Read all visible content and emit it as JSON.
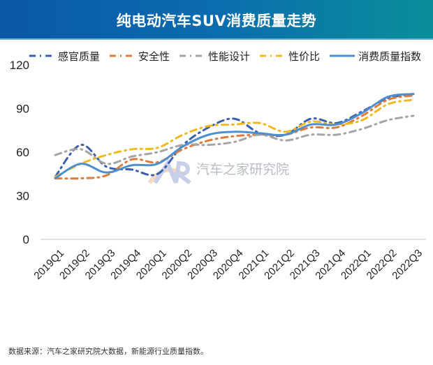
{
  "header": {
    "title": "纯电动汽车SUV消费质量走势"
  },
  "legend": [
    {
      "label": "感官质量",
      "color": "#3a5fb0",
      "style": "dash-dot"
    },
    {
      "label": "安全性",
      "color": "#e07b39",
      "style": "dash-dot"
    },
    {
      "label": "性能设计",
      "color": "#a5a5a5",
      "style": "dash-dot"
    },
    {
      "label": "性价比",
      "color": "#f2b91f",
      "style": "dash-dot"
    },
    {
      "label": "消费质量指数",
      "color": "#4e8fd0",
      "style": "solid"
    }
  ],
  "watermark": {
    "text": "汽车之家研究院",
    "logo": "AR"
  },
  "source": "数据来源：汽车之家研究院大数据，新能源行业质量指数。",
  "chart_data": {
    "type": "line",
    "title": "纯电动汽车SUV消费质量走势",
    "xlabel": "",
    "ylabel": "",
    "ylim": [
      0,
      120
    ],
    "yticks": [
      0,
      30,
      60,
      90,
      120
    ],
    "grid": false,
    "legend_position": "top",
    "categories": [
      "2019Q1",
      "2019Q2",
      "2019Q3",
      "2019Q4",
      "2020Q1",
      "2020Q2",
      "2020Q3",
      "2020Q4",
      "2021Q1",
      "2021Q2",
      "2021Q3",
      "2021Q4",
      "2022Q1",
      "2022Q2",
      "2022Q3"
    ],
    "series": [
      {
        "name": "感官质量",
        "values": [
          43,
          65,
          50,
          48,
          45,
          65,
          77,
          83,
          73,
          72,
          83,
          80,
          88,
          97,
          100
        ]
      },
      {
        "name": "安全性",
        "values": [
          42,
          42,
          44,
          55,
          53,
          62,
          68,
          71,
          72,
          72,
          77,
          77,
          85,
          96,
          99
        ]
      },
      {
        "name": "性能设计",
        "values": [
          58,
          62,
          52,
          57,
          60,
          65,
          65,
          67,
          72,
          68,
          72,
          72,
          76,
          82,
          85
        ]
      },
      {
        "name": "性价比",
        "values": [
          43,
          52,
          58,
          62,
          63,
          72,
          78,
          79,
          80,
          74,
          81,
          79,
          82,
          93,
          96
        ]
      },
      {
        "name": "消费质量指数",
        "values": [
          42,
          52,
          46,
          51,
          52,
          64,
          72,
          74,
          73,
          72,
          79,
          79,
          87,
          98,
          100
        ]
      }
    ]
  }
}
